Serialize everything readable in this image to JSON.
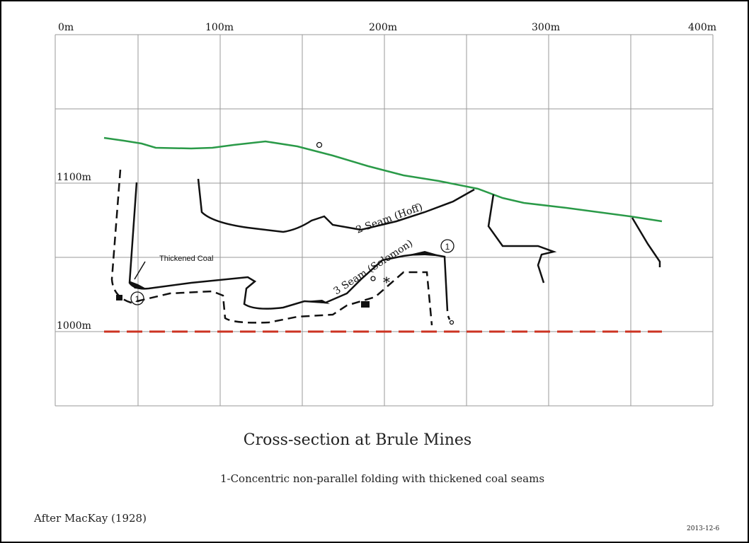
{
  "axis": {
    "x_labels": [
      "0m",
      "100m",
      "200m",
      "300m",
      "400m"
    ],
    "y_labels": [
      "1100m",
      "1000m"
    ]
  },
  "annotations": {
    "thickened_coal": "Thickened Coal",
    "seam_2": "2 Seam (Hoff)",
    "seam_3": "3 Seam (Solomon)",
    "fold_markers": [
      "1",
      "1"
    ]
  },
  "title": "Cross-section at Brule Mines",
  "caption": "1-Concentric non-parallel folding with thickened coal seams",
  "source": "After MacKay (1928)",
  "date": "2013-12-6"
}
